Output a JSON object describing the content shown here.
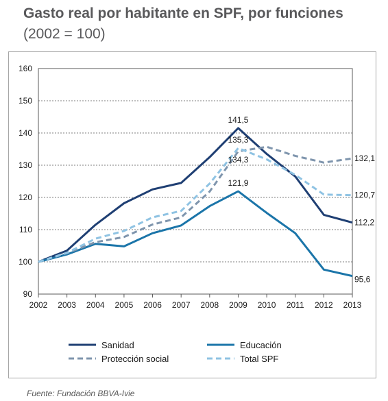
{
  "header": {
    "title": "Gasto real por habitante en SPF, por funciones",
    "subtitle": "(2002 = 100)"
  },
  "footer": {
    "source": "Fuente: Fundación BBVA-Ivie"
  },
  "chart_data": {
    "type": "line",
    "title": "Gasto real por habitante en SPF, por funciones",
    "subtitle": "(2002 = 100)",
    "xlabel": "",
    "ylabel": "",
    "x": [
      "2002",
      "2003",
      "2004",
      "2005",
      "2006",
      "2007",
      "2008",
      "2009",
      "2010",
      "2011",
      "2012",
      "2013"
    ],
    "ylim": [
      90,
      160
    ],
    "yticks": [
      90,
      100,
      110,
      120,
      130,
      140,
      150,
      160
    ],
    "grid": true,
    "legend_position": "bottom",
    "series": [
      {
        "name": "Sanidad",
        "color": "#1f3f73",
        "dash": "solid",
        "values": [
          100,
          103.5,
          111.5,
          118.2,
          122.5,
          124.5,
          132.5,
          141.5,
          133.5,
          126.5,
          114.6,
          112.2
        ]
      },
      {
        "name": "Educación",
        "color": "#1b75a9",
        "dash": "solid",
        "values": [
          100,
          102.3,
          105.6,
          104.8,
          108.9,
          111.3,
          117.3,
          121.9,
          115.2,
          108.9,
          97.6,
          95.6
        ]
      },
      {
        "name": "Protección social",
        "color": "#7f95ad",
        "dash": "dashed",
        "values": [
          100,
          102.7,
          106.1,
          107.7,
          111.6,
          113.8,
          121.8,
          134.3,
          135.7,
          132.9,
          130.8,
          132.1
        ]
      },
      {
        "name": "Total SPF",
        "color": "#8fc3e3",
        "dash": "dashed",
        "values": [
          100,
          102.8,
          107.2,
          109.6,
          113.8,
          115.8,
          124.3,
          135.3,
          131.8,
          127.0,
          120.9,
          120.7
        ]
      }
    ],
    "annotations": [
      {
        "text": "141,5",
        "series": 0,
        "index": 7,
        "pos": "above"
      },
      {
        "text": "135,3",
        "series": 3,
        "index": 7,
        "pos": "above"
      },
      {
        "text": "134,3",
        "series": 2,
        "index": 7,
        "pos": "below"
      },
      {
        "text": "121,9",
        "series": 1,
        "index": 7,
        "pos": "above"
      },
      {
        "text": "132,1",
        "series": 2,
        "index": 11,
        "pos": "right"
      },
      {
        "text": "120,7",
        "series": 3,
        "index": 11,
        "pos": "right"
      },
      {
        "text": "112,2",
        "series": 0,
        "index": 11,
        "pos": "right"
      },
      {
        "text": "95,6",
        "series": 1,
        "index": 11,
        "pos": "right-below"
      }
    ]
  }
}
